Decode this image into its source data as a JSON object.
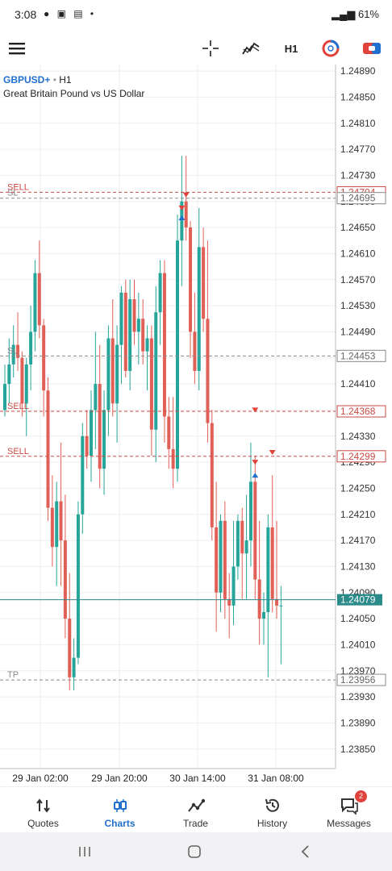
{
  "status_bar": {
    "time": "3:08",
    "battery": "61%"
  },
  "toolbar": {
    "timeframe": "H1",
    "icons": [
      "menu-icon",
      "crosshair-icon",
      "indicators-icon",
      "timeframe",
      "color-theme-icon",
      "trade-icon"
    ]
  },
  "symbol": {
    "name": "GBPUSD+",
    "timeframe": "H1",
    "description": "Great Britain Pound vs US Dollar"
  },
  "colors": {
    "bull": "#26a69a",
    "bear": "#e06057",
    "price_line": "#2b8a8a",
    "accent": "#1f6fcf",
    "order_line": "#c94a45",
    "grid": "#eeeeee"
  },
  "chart_data": {
    "type": "candlestick",
    "y_ticks": [
      "1.24890",
      "1.24850",
      "1.24810",
      "1.24770",
      "1.24730",
      "1.24690",
      "1.24650",
      "1.24610",
      "1.24570",
      "1.24530",
      "1.24490",
      "1.24450",
      "1.24410",
      "1.24370",
      "1.24330",
      "1.24290",
      "1.24250",
      "1.24210",
      "1.24170",
      "1.24130",
      "1.24090",
      "1.24050",
      "1.24010",
      "1.23970",
      "1.23930",
      "1.23890",
      "1.23850"
    ],
    "x_labels": [
      "29 Jan 02:00",
      "29 Jan 20:00",
      "30 Jan 14:00",
      "31 Jan 08:00"
    ],
    "ylim": [
      1.2382,
      1.249
    ],
    "candles": [
      [
        1.2437,
        1.2444,
        1.2436,
        1.2441
      ],
      [
        1.2441,
        1.2448,
        1.2438,
        1.2444
      ],
      [
        1.2444,
        1.245,
        1.2442,
        1.2447
      ],
      [
        1.2447,
        1.2452,
        1.2443,
        1.2445
      ],
      [
        1.2445,
        1.2446,
        1.2436,
        1.2438
      ],
      [
        1.2438,
        1.2445,
        1.2433,
        1.2444
      ],
      [
        1.2444,
        1.2453,
        1.244,
        1.2449
      ],
      [
        1.2449,
        1.246,
        1.2446,
        1.2458
      ],
      [
        1.2458,
        1.2463,
        1.2448,
        1.245
      ],
      [
        1.245,
        1.2451,
        1.2436,
        1.244
      ],
      [
        1.244,
        1.2442,
        1.242,
        1.2422
      ],
      [
        1.2422,
        1.2427,
        1.2413,
        1.2416
      ],
      [
        1.2416,
        1.2426,
        1.241,
        1.2423
      ],
      [
        1.2423,
        1.2432,
        1.241,
        1.2417
      ],
      [
        1.2417,
        1.2424,
        1.2402,
        1.2405
      ],
      [
        1.2405,
        1.2412,
        1.2394,
        1.2396
      ],
      [
        1.2396,
        1.2402,
        1.2394,
        1.2399
      ],
      [
        1.2399,
        1.2423,
        1.2398,
        1.2421
      ],
      [
        1.2421,
        1.2435,
        1.2418,
        1.2433
      ],
      [
        1.2433,
        1.2437,
        1.2428,
        1.243
      ],
      [
        1.243,
        1.244,
        1.2426,
        1.2437
      ],
      [
        1.2437,
        1.2449,
        1.2431,
        1.2441
      ],
      [
        1.2441,
        1.2447,
        1.2425,
        1.2428
      ],
      [
        1.2428,
        1.244,
        1.2424,
        1.2437
      ],
      [
        1.2437,
        1.245,
        1.2433,
        1.2448
      ],
      [
        1.2448,
        1.2454,
        1.2436,
        1.2438
      ],
      [
        1.2438,
        1.245,
        1.2432,
        1.2447
      ],
      [
        1.2447,
        1.2456,
        1.2441,
        1.2455
      ],
      [
        1.2455,
        1.2457,
        1.2442,
        1.2443
      ],
      [
        1.2443,
        1.2457,
        1.244,
        1.2454
      ],
      [
        1.2454,
        1.2457,
        1.2447,
        1.2449
      ],
      [
        1.2449,
        1.2455,
        1.2444,
        1.2451
      ],
      [
        1.2451,
        1.2454,
        1.2444,
        1.2446
      ],
      [
        1.2446,
        1.245,
        1.244,
        1.2448
      ],
      [
        1.2448,
        1.245,
        1.243,
        1.2434
      ],
      [
        1.2434,
        1.2456,
        1.2429,
        1.2452
      ],
      [
        1.2452,
        1.246,
        1.2447,
        1.2458
      ],
      [
        1.2458,
        1.246,
        1.2432,
        1.2436
      ],
      [
        1.2436,
        1.2439,
        1.2428,
        1.2431
      ],
      [
        1.2431,
        1.2439,
        1.2425,
        1.2428
      ],
      [
        1.2428,
        1.2467,
        1.2426,
        1.2463
      ],
      [
        1.2463,
        1.2476,
        1.2456,
        1.2469
      ],
      [
        1.2469,
        1.2476,
        1.2463,
        1.2465
      ],
      [
        1.2465,
        1.2466,
        1.2445,
        1.2449
      ],
      [
        1.2449,
        1.2455,
        1.2441,
        1.2443
      ],
      [
        1.2443,
        1.2468,
        1.244,
        1.2462
      ],
      [
        1.2462,
        1.2465,
        1.2449,
        1.2451
      ],
      [
        1.2451,
        1.2463,
        1.2432,
        1.2435
      ],
      [
        1.2435,
        1.2437,
        1.2417,
        1.2419
      ],
      [
        1.2419,
        1.2426,
        1.2403,
        1.2409
      ],
      [
        1.2409,
        1.2421,
        1.2406,
        1.242
      ],
      [
        1.242,
        1.2423,
        1.2405,
        1.2408
      ],
      [
        1.2408,
        1.2412,
        1.2402,
        1.2407
      ],
      [
        1.2407,
        1.242,
        1.2404,
        1.2413
      ],
      [
        1.2413,
        1.2421,
        1.2411,
        1.242
      ],
      [
        1.242,
        1.2422,
        1.2408,
        1.2415
      ],
      [
        1.2415,
        1.2424,
        1.2408,
        1.2417
      ],
      [
        1.2417,
        1.2432,
        1.2413,
        1.2426
      ],
      [
        1.2426,
        1.243,
        1.2408,
        1.2411
      ],
      [
        1.2411,
        1.242,
        1.2401,
        1.2405
      ],
      [
        1.2405,
        1.2409,
        1.2401,
        1.2406
      ],
      [
        1.2406,
        1.2421,
        1.2396,
        1.2419
      ],
      [
        1.2419,
        1.2427,
        1.2406,
        1.2408
      ],
      [
        1.2408,
        1.242,
        1.2405,
        1.2407
      ],
      [
        1.2407,
        1.241,
        1.2398,
        1.2407
      ]
    ],
    "order_lines": [
      {
        "label": "SELL",
        "price_label": "1.24704",
        "price": 1.24704,
        "style": "dashed-red"
      },
      {
        "label": "SL",
        "price_label": "1.24695",
        "price": 1.24695,
        "style": "dashed-gray"
      },
      {
        "label": "SL",
        "price_label": "1.24453",
        "price": 1.24453,
        "style": "dashed-gray"
      },
      {
        "label": "SELL",
        "price_label": "1.24368",
        "price": 1.24368,
        "style": "dashed-red"
      },
      {
        "label": "SELL",
        "price_label": "1.24299",
        "price": 1.24299,
        "style": "dashed-red"
      },
      {
        "label": "TP",
        "price_label": "1.23956",
        "price": 1.23956,
        "style": "dashed-gray"
      }
    ],
    "current_price": {
      "label": "1.24079",
      "price": 1.24079
    },
    "trade_arrows": [
      {
        "candle": 41,
        "price": 1.2468,
        "dir": "sell"
      },
      {
        "candle": 41,
        "price": 1.24665,
        "dir": "buy"
      },
      {
        "candle": 42,
        "price": 1.247,
        "dir": "sell"
      },
      {
        "candle": 58,
        "price": 1.2437,
        "dir": "sell"
      },
      {
        "candle": 58,
        "price": 1.2429,
        "dir": "sell"
      },
      {
        "candle": 58,
        "price": 1.2427,
        "dir": "buy"
      },
      {
        "candle": 62,
        "price": 1.24305,
        "dir": "sell"
      }
    ]
  },
  "bottom_nav": [
    {
      "label": "Quotes",
      "icon": "quotes-icon"
    },
    {
      "label": "Charts",
      "icon": "charts-icon"
    },
    {
      "label": "Trade",
      "icon": "trade-chart-icon"
    },
    {
      "label": "History",
      "icon": "history-icon"
    },
    {
      "label": "Messages",
      "icon": "messages-icon",
      "badge": "2"
    }
  ]
}
